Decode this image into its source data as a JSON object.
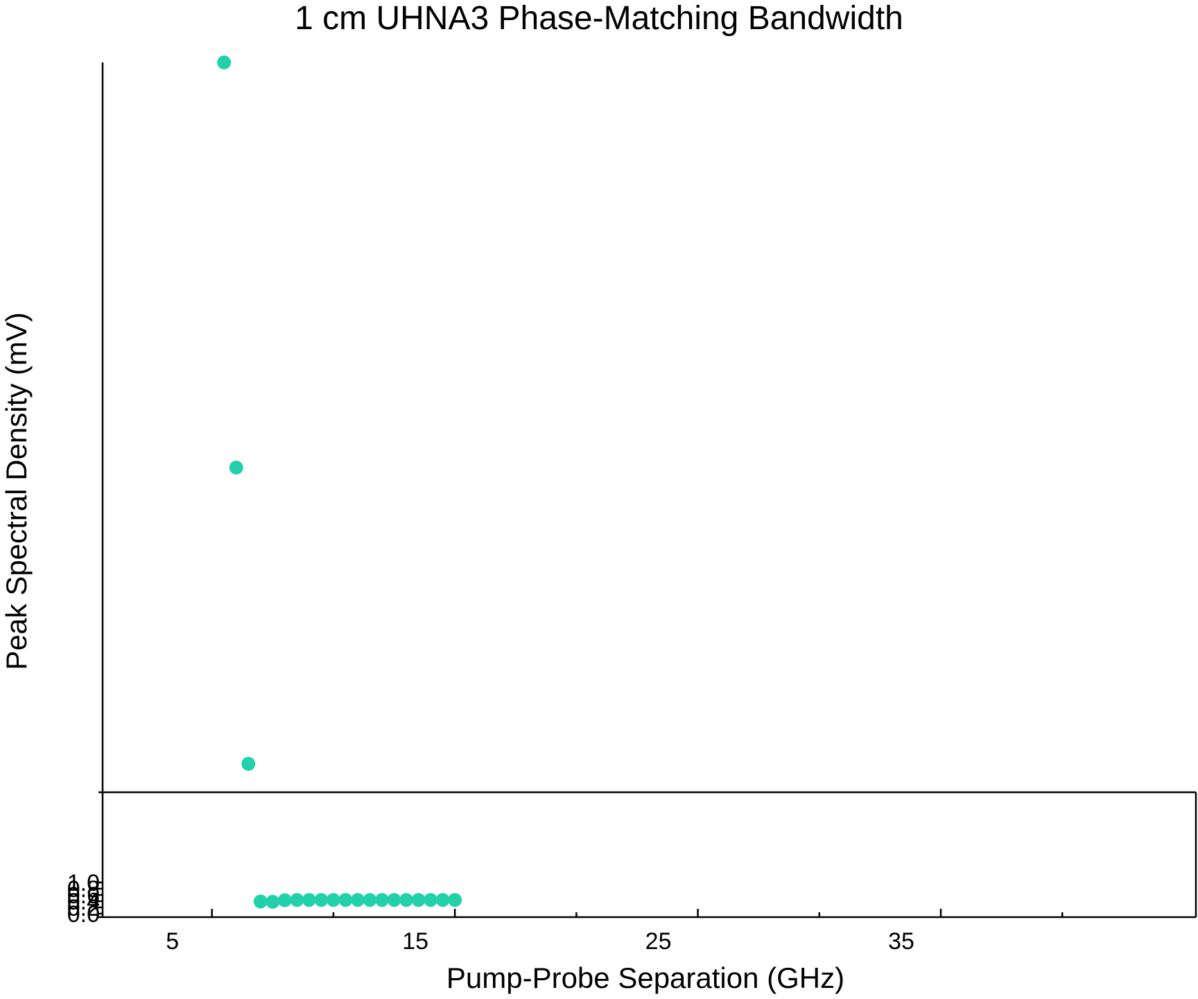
{
  "chart_data": {
    "type": "scatter",
    "title": "1 cm UHNA3 Phase-Matching Bandwidth",
    "xlabel": "Pump-Probe Separation (GHz)",
    "ylabel": "Peak Spectral Density (mV)",
    "xlim": [
      0.5,
      45.5
    ],
    "x_ticks": [
      5,
      15,
      25,
      35
    ],
    "x_minor_ticks": [
      10,
      20,
      30,
      40
    ],
    "y_ticks": [
      "0.0",
      "0.2",
      "0.4",
      "0.6",
      "0.8",
      "1.0"
    ],
    "grid": false,
    "legend": "none",
    "marker_color": "#22d1aa",
    "series": [
      {
        "x": [
          5.5,
          6.0,
          6.5,
          7.0,
          7.5,
          8.0,
          8.5,
          9.0,
          9.5,
          10.0,
          10.5,
          11.0,
          11.5,
          12.0,
          12.5,
          13.0,
          13.5,
          14.0,
          14.5,
          15.0
        ],
        "y": [
          70.0,
          45.0,
          26.7,
          0.39,
          0.38,
          0.43,
          0.44,
          0.44,
          0.44,
          0.44,
          0.44,
          0.44,
          0.44,
          0.44,
          0.44,
          0.44,
          0.44,
          0.44,
          0.44,
          0.44
        ]
      }
    ]
  }
}
